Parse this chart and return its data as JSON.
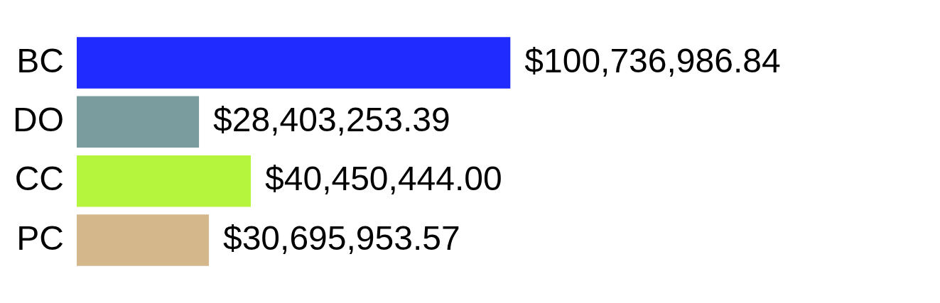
{
  "chart_data": {
    "type": "bar",
    "orientation": "horizontal",
    "categories": [
      "BC",
      "DO",
      "CC",
      "PC"
    ],
    "values": [
      100736986.84,
      28403253.39,
      40450444.0,
      30695953.57
    ],
    "colors": [
      "#1f2bff",
      "#7a9c9e",
      "#b5f53d",
      "#d4b78a"
    ],
    "value_labels": [
      "$100,736,986.84",
      "$28,403,253.39",
      "$40,450,444.00",
      "$30,695,953.57"
    ],
    "data_labels": false
  }
}
